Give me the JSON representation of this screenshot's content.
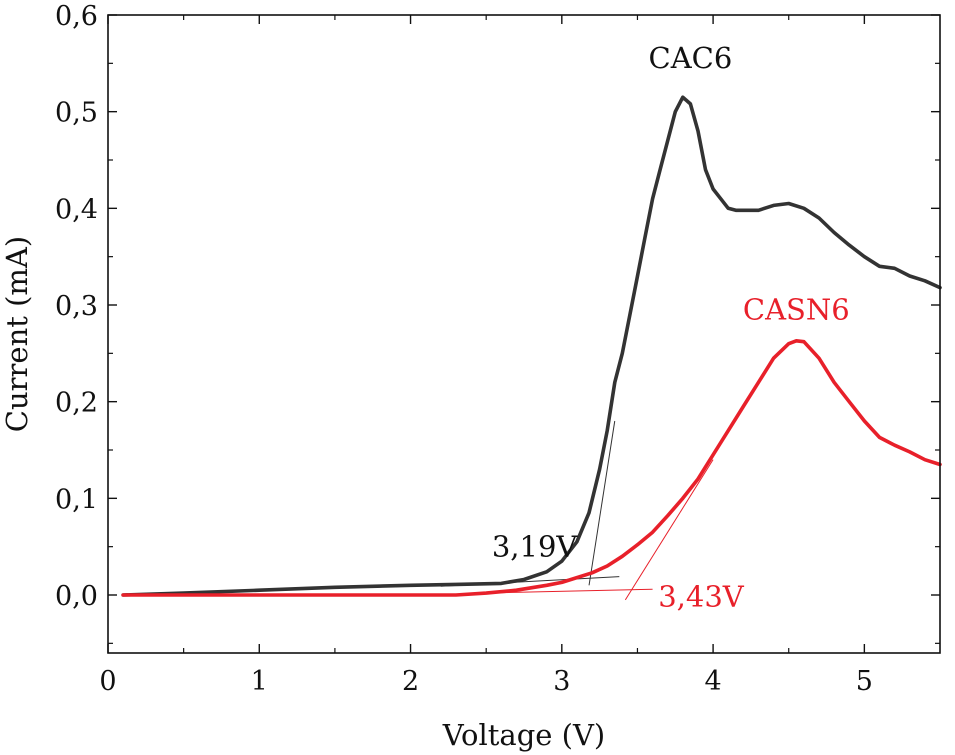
{
  "chart_data": {
    "type": "line",
    "title": "",
    "xlabel": "Voltage (V)",
    "ylabel": "Current (mA)",
    "xlim": [
      0,
      5.5
    ],
    "ylim": [
      -0.06,
      0.6
    ],
    "x_ticks": [
      0,
      1,
      2,
      3,
      4,
      5
    ],
    "x_tick_labels": [
      "0",
      "1",
      "2",
      "3",
      "4",
      "5"
    ],
    "y_ticks": [
      0.0,
      0.1,
      0.2,
      0.3,
      0.4,
      0.5,
      0.6
    ],
    "y_tick_labels": [
      "0,0",
      "0,1",
      "0,2",
      "0,3",
      "0,4",
      "0,5",
      "0,6"
    ],
    "grid": false,
    "legend": "none",
    "series": [
      {
        "name": "CAC6",
        "color": "#333333",
        "x": [
          0.1,
          0.5,
          1.0,
          1.5,
          2.0,
          2.3,
          2.6,
          2.75,
          2.9,
          3.0,
          3.1,
          3.18,
          3.25,
          3.3,
          3.35,
          3.4,
          3.45,
          3.5,
          3.55,
          3.6,
          3.65,
          3.7,
          3.75,
          3.8,
          3.85,
          3.9,
          3.95,
          4.0,
          4.05,
          4.1,
          4.15,
          4.2,
          4.3,
          4.4,
          4.5,
          4.6,
          4.7,
          4.8,
          4.9,
          5.0,
          5.1,
          5.2,
          5.3,
          5.4,
          5.5
        ],
        "y": [
          0.0,
          0.002,
          0.005,
          0.008,
          0.01,
          0.011,
          0.012,
          0.016,
          0.024,
          0.035,
          0.055,
          0.085,
          0.13,
          0.17,
          0.22,
          0.25,
          0.29,
          0.33,
          0.37,
          0.41,
          0.44,
          0.47,
          0.5,
          0.515,
          0.508,
          0.48,
          0.44,
          0.42,
          0.41,
          0.4,
          0.398,
          0.398,
          0.398,
          0.403,
          0.405,
          0.4,
          0.39,
          0.375,
          0.362,
          0.35,
          0.34,
          0.338,
          0.33,
          0.325,
          0.318
        ]
      },
      {
        "name": "CASN6",
        "color": "#e8202a",
        "x": [
          0.1,
          0.5,
          1.0,
          1.5,
          2.0,
          2.3,
          2.5,
          2.7,
          2.9,
          3.0,
          3.1,
          3.2,
          3.3,
          3.4,
          3.5,
          3.6,
          3.7,
          3.8,
          3.9,
          4.0,
          4.1,
          4.2,
          4.3,
          4.4,
          4.5,
          4.55,
          4.6,
          4.7,
          4.8,
          4.9,
          5.0,
          5.1,
          5.2,
          5.3,
          5.4,
          5.5
        ],
        "y": [
          0.0,
          0.0,
          0.0,
          0.0,
          0.0,
          0.0,
          0.002,
          0.005,
          0.01,
          0.013,
          0.018,
          0.023,
          0.03,
          0.04,
          0.052,
          0.065,
          0.082,
          0.1,
          0.12,
          0.145,
          0.17,
          0.195,
          0.22,
          0.245,
          0.26,
          0.263,
          0.262,
          0.245,
          0.22,
          0.2,
          0.18,
          0.163,
          0.155,
          0.148,
          0.14,
          0.135
        ]
      }
    ],
    "tangent_lines": [
      {
        "color": "#333333",
        "points": [
          [
            2.2,
            0.009
          ],
          [
            3.38,
            0.019
          ]
        ]
      },
      {
        "color": "#333333",
        "points": [
          [
            3.18,
            0.01
          ],
          [
            3.35,
            0.18
          ]
        ]
      },
      {
        "color": "#e8202a",
        "points": [
          [
            2.5,
            0.002
          ],
          [
            3.6,
            0.006
          ]
        ]
      },
      {
        "color": "#e8202a",
        "points": [
          [
            3.42,
            -0.005
          ],
          [
            4.0,
            0.14
          ]
        ]
      }
    ],
    "annotations": [
      {
        "text": "CAC6",
        "color": "#111111",
        "x": 3.85,
        "y": 0.545
      },
      {
        "text": "CASN6",
        "color": "#e8202a",
        "x": 4.55,
        "y": 0.285
      },
      {
        "text": "3,19V",
        "color": "#111111",
        "x": 2.82,
        "y": 0.04
      },
      {
        "text": "3,43V",
        "color": "#e8202a",
        "x": 3.92,
        "y": -0.012
      }
    ]
  }
}
